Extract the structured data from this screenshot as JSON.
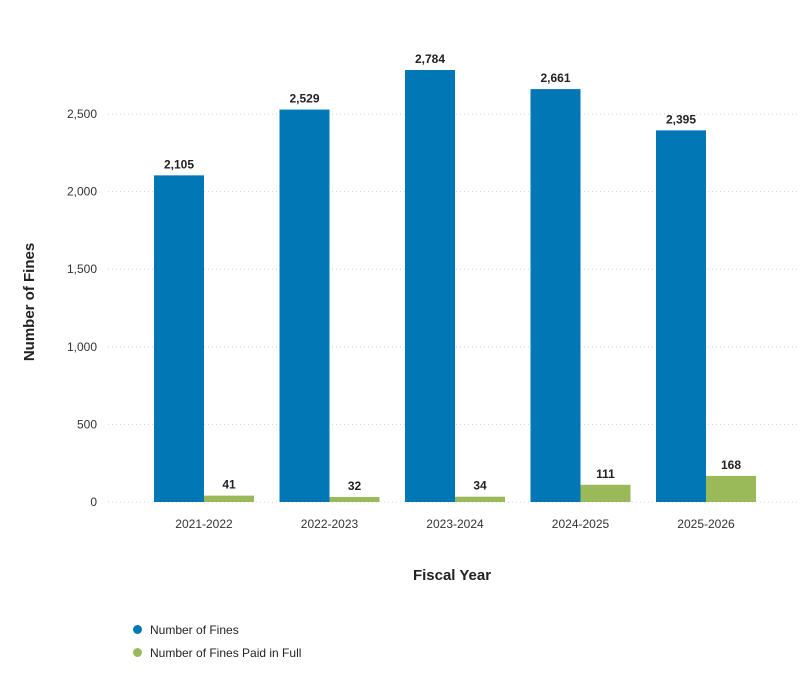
{
  "chart_data": {
    "type": "bar",
    "categories": [
      "2021-2022",
      "2022-2023",
      "2023-2024",
      "2024-2025",
      "2025-2026"
    ],
    "series": [
      {
        "name": "Number of Fines",
        "values": [
          2105,
          2529,
          2784,
          2661,
          2395
        ],
        "color": "#0277b5"
      },
      {
        "name": "Number of Fines Paid in Full",
        "values": [
          41,
          32,
          34,
          111,
          168
        ],
        "color": "#9aba5a"
      }
    ],
    "data_labels": [
      [
        "2,105",
        "2,529",
        "2,784",
        "2,661",
        "2,395"
      ],
      [
        "41",
        "32",
        "34",
        "111",
        "168"
      ]
    ],
    "xlabel": "Fiscal Year",
    "ylabel": "Number of Fines",
    "yticks": [
      0,
      500,
      1000,
      1500,
      2000,
      2500
    ],
    "ytick_labels": [
      "0",
      "500",
      "1,000",
      "1,500",
      "2,000",
      "2,500"
    ],
    "ylim": [
      0,
      2784
    ],
    "grid": true,
    "legend_position": "bottom-left"
  }
}
